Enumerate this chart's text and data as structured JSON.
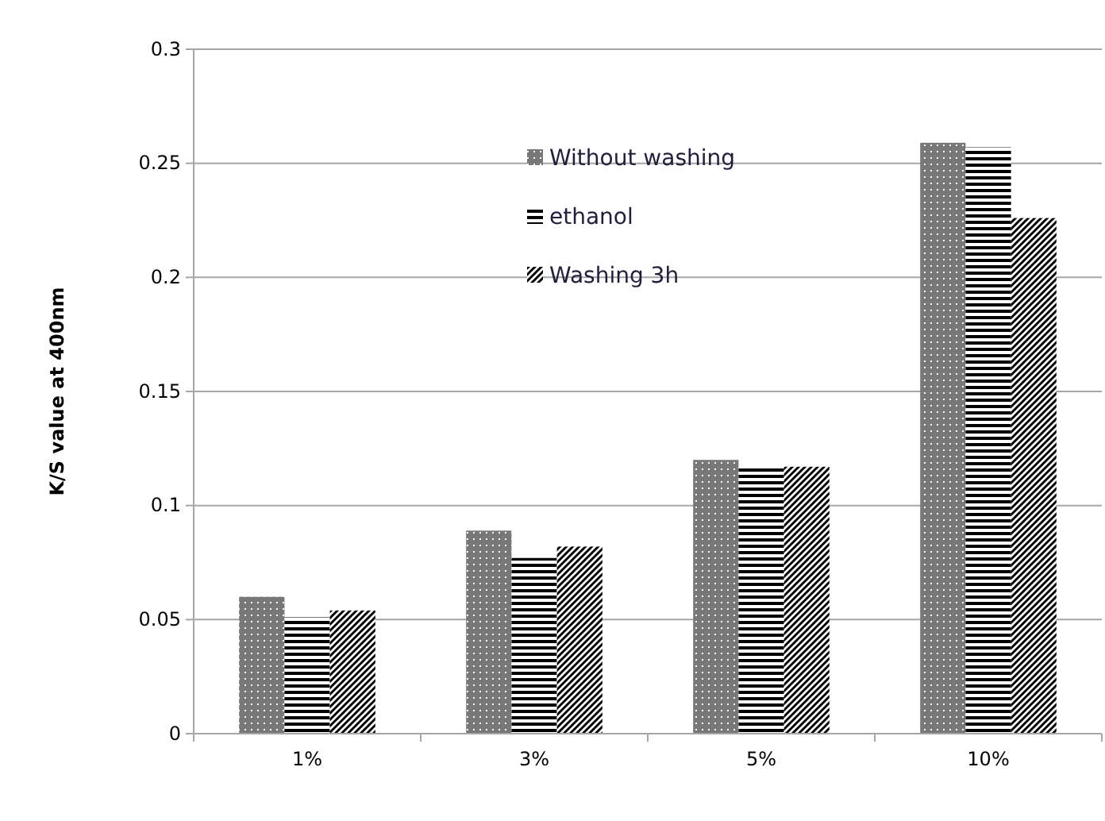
{
  "chart_data": {
    "type": "bar",
    "ylabel": "K/S value at 400nm",
    "categories": [
      "1%",
      "3%",
      "5%",
      "10%"
    ],
    "series": [
      {
        "name": "Without washing",
        "color": "#606060",
        "values": [
          0.06,
          0.089,
          0.12,
          0.259
        ]
      },
      {
        "name": "ethanol",
        "color": "#000000",
        "values": [
          0.051,
          0.077,
          0.117,
          0.257
        ]
      },
      {
        "name": "Washing 3h",
        "color": "#000000",
        "values": [
          0.054,
          0.082,
          0.117,
          0.226
        ]
      }
    ],
    "ylim": [
      0,
      0.3
    ],
    "yticks": [
      0,
      0.05,
      0.1,
      0.15,
      0.2,
      0.25,
      0.3
    ],
    "grid": "y",
    "legend": "top"
  }
}
